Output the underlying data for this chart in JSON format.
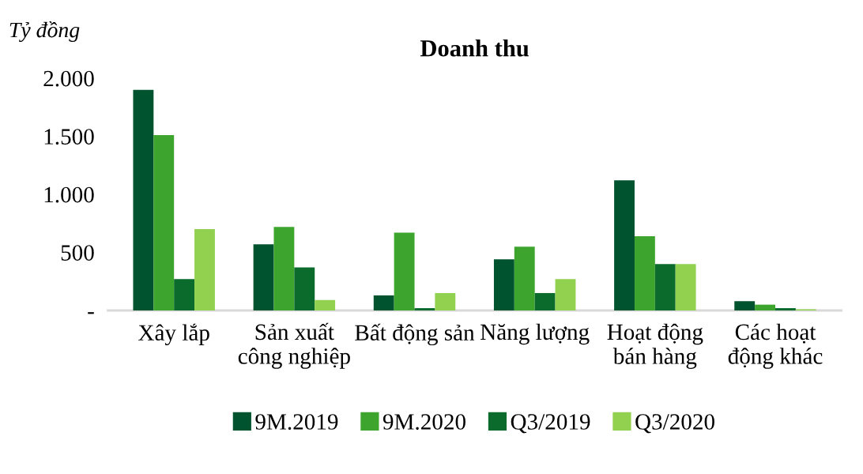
{
  "chart_data": {
    "type": "bar",
    "title": "Doanh thu",
    "ylabel": "Tỷ đồng",
    "categories": [
      "Xây lắp",
      "Sản xuất\ncông nghiệp",
      "Bất động sản",
      "Năng lượng",
      "Hoạt động\nbán hàng",
      "Các hoạt\nđộng khác"
    ],
    "series": [
      {
        "name": "9M.2019",
        "color": "#00532f",
        "values": [
          1900,
          570,
          130,
          440,
          1120,
          80
        ]
      },
      {
        "name": "9M.2020",
        "color": "#3da42e",
        "values": [
          1510,
          720,
          670,
          550,
          640,
          50
        ]
      },
      {
        "name": "Q3/2019",
        "color": "#0a6b2c",
        "values": [
          270,
          370,
          20,
          150,
          400,
          20
        ]
      },
      {
        "name": "Q3/2020",
        "color": "#92d050",
        "values": [
          700,
          90,
          150,
          270,
          400,
          10
        ]
      }
    ],
    "ylim": [
      0,
      2000
    ],
    "yticks": [
      {
        "value": 0,
        "label": "-"
      },
      {
        "value": 500,
        "label": "500"
      },
      {
        "value": 1000,
        "label": "1.000"
      },
      {
        "value": 1500,
        "label": "1.500"
      },
      {
        "value": 2000,
        "label": "2.000"
      }
    ],
    "grid": false,
    "legend": "bottom"
  }
}
